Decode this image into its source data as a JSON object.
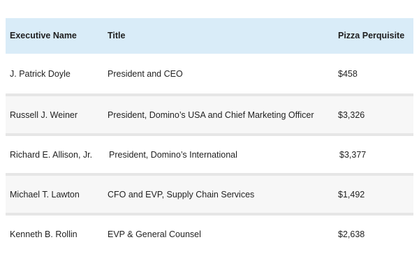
{
  "table": {
    "headers": {
      "name": "Executive Name",
      "title": "Title",
      "perk": "Pizza Perquisite"
    },
    "rows": [
      {
        "name": "J. Patrick Doyle",
        "title": "President and CEO",
        "perk": "$458"
      },
      {
        "name": "Russell J. Weiner",
        "title": "President, Domino’s USA and Chief Marketing Officer",
        "perk": "$3,326"
      },
      {
        "name": "Richard E. Allison, Jr.",
        "title": "President, Domino’s International",
        "perk": "$3,377"
      },
      {
        "name": "Michael T. Lawton",
        "title": "CFO and EVP, Supply Chain Services",
        "perk": "$1,492"
      },
      {
        "name": "Kenneth B. Rollin",
        "title": "EVP & General Counsel",
        "perk": "$2,638"
      }
    ]
  }
}
